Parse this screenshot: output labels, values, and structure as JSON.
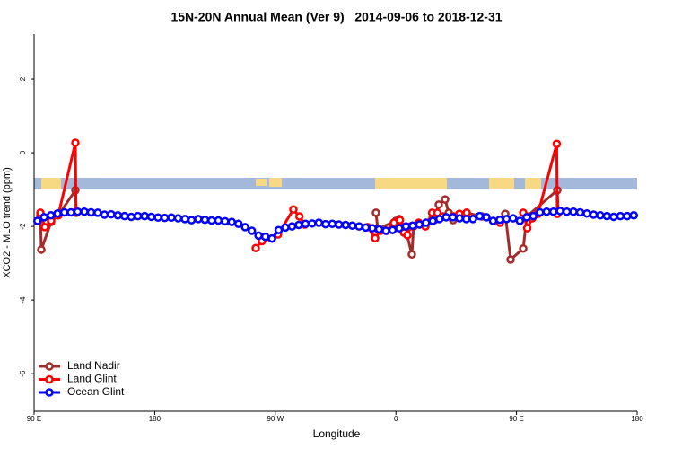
{
  "chart_data": {
    "type": "line",
    "title": "15N-20N Annual Mean (Ver 9)   2014-09-06 to 2018-12-31",
    "x_label": "Longitude",
    "y_label": "XCO2 - MLO trend (ppm)",
    "xlim": [
      90,
      540
    ],
    "ylim": [
      -7.02,
      3.22
    ],
    "xticks": [
      {
        "value": 90,
        "label": "90 E"
      },
      180,
      {
        "value": 270,
        "label": "90 W"
      },
      {
        "value": 360,
        "label": "0"
      },
      {
        "value": 450,
        "label": "90 E"
      },
      {
        "value": 540,
        "label": "180"
      }
    ],
    "yticks": [
      -6,
      -4,
      -2,
      0,
      2
    ],
    "legend": "bottom-left",
    "series": [
      {
        "name": "Land Nadir",
        "color": "#a52a2a",
        "x": [
          94.7,
          95.4,
          102.7,
          108.1,
          120.8,
          121.5,
          null,
          345.1,
          346.5,
          359.9,
          362.5,
          367.2,
          371.9,
          373.2,
          388.7,
          392,
          396.7,
          399.4,
          402.7,
          412.8,
          424.2,
          437.6,
          441.6,
          445.6,
          455,
          457.7,
          480.4,
          481.1
        ],
        "values": [
          -1.7,
          -2.63,
          -1.88,
          -1.7,
          -1.02,
          -1.63,
          null,
          -1.63,
          -2.07,
          -1.85,
          -1.8,
          -2.07,
          -2.76,
          -2.0,
          -1.83,
          -1.41,
          -1.27,
          -1.63,
          -1.83,
          -1.63,
          -1.73,
          -1.85,
          -1.66,
          -2.9,
          -2.6,
          -1.73,
          -1.02,
          -1.63
        ]
      },
      {
        "name": "Land Glint",
        "color": "#ff0000",
        "x": [
          94.7,
          98,
          102.7,
          108,
          120.8,
          121.3,
          null,
          255.4,
          260,
          267.5,
          272,
          283.5,
          288,
          292,
          null,
          339,
          344.5,
          348.5,
          353,
          358.5,
          363,
          366,
          368.6,
          371,
          377,
          382,
          387,
          391,
          395,
          403,
          407.4,
          412.8,
          null,
          437.6,
          null,
          455,
          458,
          461.7,
          466,
          480,
          480.4
        ],
        "values": [
          -1.63,
          -2.02,
          -1.85,
          -1.7,
          0.27,
          -1.6,
          null,
          -2.59,
          -2.4,
          -2.33,
          -2.22,
          -1.54,
          -1.73,
          -1.95,
          null,
          -2.02,
          -2.32,
          -2.12,
          -2.12,
          -1.9,
          -1.83,
          -2.17,
          -2.24,
          -2.0,
          -1.9,
          -2.0,
          -1.63,
          -1.63,
          -1.73,
          -1.73,
          -1.66,
          -1.63,
          null,
          -1.9,
          null,
          -1.63,
          -2.05,
          -1.78,
          -1.66,
          0.24,
          -1.66
        ]
      },
      {
        "name": "Ocean Glint",
        "color": "#0000ff",
        "x": [
          92.5,
          97.5,
          102.5,
          107.5,
          112.5,
          117.5,
          122.5,
          127.5,
          132.5,
          137.5,
          142.5,
          147.5,
          152.5,
          157.5,
          162.5,
          167.5,
          172.5,
          177.5,
          182.5,
          187.5,
          192.5,
          197.5,
          202.5,
          207.5,
          212.5,
          217.5,
          222.5,
          227.5,
          232.5,
          237.5,
          242.5,
          247.5,
          252.5,
          257.5,
          262.5,
          267.5,
          272.5,
          277.5,
          282.5,
          287.5,
          292.5,
          297.5,
          302.5,
          307.5,
          312.5,
          317.5,
          322.5,
          327.5,
          332.5,
          337.5,
          342.5,
          347.5,
          352.5,
          357.5,
          362.5,
          367.5,
          372.5,
          377.5,
          382.5,
          387.5,
          392.5,
          397.5,
          402.5,
          407.5,
          412.5,
          417.5,
          422.5,
          427.5,
          432.5,
          437.5,
          442.5,
          447.5,
          452.5,
          457.5,
          462.5,
          467.5,
          472.5,
          477.5,
          482.5,
          487.5,
          492.5,
          497.5,
          502.5,
          507.5,
          512.5,
          517.5,
          522.5,
          527.5,
          532.5,
          537.5
        ],
        "values": [
          -1.85,
          -1.75,
          -1.7,
          -1.65,
          -1.62,
          -1.62,
          -1.6,
          -1.6,
          -1.62,
          -1.63,
          -1.68,
          -1.67,
          -1.7,
          -1.72,
          -1.74,
          -1.72,
          -1.72,
          -1.74,
          -1.76,
          -1.77,
          -1.76,
          -1.78,
          -1.8,
          -1.83,
          -1.8,
          -1.82,
          -1.84,
          -1.84,
          -1.86,
          -1.88,
          -1.93,
          -2.02,
          -2.12,
          -2.25,
          -2.28,
          -2.33,
          -2.1,
          -2.03,
          -2.0,
          -1.96,
          -1.93,
          -1.92,
          -1.9,
          -1.94,
          -1.93,
          -1.95,
          -1.96,
          -1.98,
          -2.0,
          -2.03,
          -2.05,
          -2.08,
          -2.12,
          -2.1,
          -2.05,
          -2.0,
          -1.98,
          -1.95,
          -1.9,
          -1.85,
          -1.8,
          -1.75,
          -1.75,
          -1.78,
          -1.8,
          -1.8,
          -1.72,
          -1.75,
          -1.85,
          -1.82,
          -1.8,
          -1.78,
          -1.85,
          -1.75,
          -1.72,
          -1.62,
          -1.6,
          -1.6,
          -1.58,
          -1.6,
          -1.6,
          -1.62,
          -1.65,
          -1.68,
          -1.7,
          -1.72,
          -1.74,
          -1.72,
          -1.72,
          -1.7
        ]
      }
    ]
  }
}
